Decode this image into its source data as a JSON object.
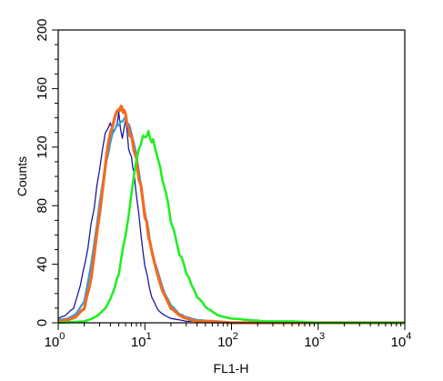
{
  "chart_data": {
    "type": "line",
    "xlabel": "FL1-H",
    "ylabel": "Counts",
    "x_scale": "log",
    "xlim": [
      1,
      10000
    ],
    "ylim": [
      0,
      200
    ],
    "x_ticks": [
      {
        "value": 1,
        "base": "10",
        "exp": "0"
      },
      {
        "value": 10,
        "base": "10",
        "exp": "1"
      },
      {
        "value": 100,
        "base": "10",
        "exp": "2"
      },
      {
        "value": 1000,
        "base": "10",
        "exp": "3"
      },
      {
        "value": 10000,
        "base": "10",
        "exp": "4"
      }
    ],
    "y_ticks": [
      "0",
      "40",
      "80",
      "120",
      "160",
      "200"
    ],
    "grid": false,
    "legend": "none",
    "series": [
      {
        "color": "#1a1aa0",
        "x": [
          1.0,
          1.2,
          1.5,
          1.8,
          2.2,
          2.6,
          3.0,
          3.5,
          4.0,
          4.5,
          5.0,
          5.5,
          6.0,
          6.5,
          7.0,
          7.5,
          8.0,
          9.0,
          10.0,
          12.0,
          14.0,
          17.0,
          20.0,
          25.0,
          30.0,
          40.0,
          60.0,
          100.0,
          10000.0
        ],
        "y": [
          3,
          5,
          10,
          25,
          52,
          80,
          105,
          128,
          136,
          130,
          142,
          128,
          137,
          118,
          114,
          100,
          88,
          60,
          38,
          18,
          9,
          5,
          3,
          2,
          1,
          1,
          0,
          0,
          0
        ]
      },
      {
        "color": "#3399dd",
        "x": [
          1.0,
          1.3,
          1.6,
          2.0,
          2.4,
          2.8,
          3.2,
          3.6,
          4.0,
          4.5,
          5.0,
          5.5,
          6.0,
          6.5,
          7.0,
          8.0,
          9.0,
          10.0,
          11.0,
          12.0,
          14.0,
          17.0,
          20.0,
          25.0,
          30.0,
          40.0,
          60.0,
          100.0,
          10000.0
        ],
        "y": [
          2,
          3,
          6,
          15,
          40,
          68,
          92,
          112,
          124,
          132,
          137,
          140,
          138,
          134,
          128,
          112,
          95,
          78,
          62,
          50,
          35,
          20,
          12,
          6,
          4,
          2,
          1,
          0,
          0
        ]
      },
      {
        "color": "#f26b21",
        "x": [
          1.0,
          1.3,
          1.6,
          2.0,
          2.4,
          2.8,
          3.2,
          3.6,
          4.0,
          4.5,
          5.0,
          5.3,
          5.6,
          6.0,
          6.5,
          7.0,
          8.0,
          9.0,
          10.0,
          11.0,
          12.0,
          14.0,
          17.0,
          20.0,
          25.0,
          30.0,
          40.0,
          60.0,
          100.0,
          10000.0
        ],
        "y": [
          1,
          2,
          4,
          10,
          30,
          62,
          90,
          114,
          128,
          140,
          146,
          148,
          145,
          140,
          134,
          126,
          110,
          92,
          74,
          60,
          48,
          32,
          18,
          10,
          5,
          3,
          1,
          1,
          0,
          0
        ]
      },
      {
        "color": "#22ee22",
        "x": [
          1.0,
          2.0,
          2.5,
          3.0,
          3.5,
          4.0,
          4.5,
          5.0,
          6.0,
          7.0,
          8.0,
          9.0,
          10.0,
          11.0,
          12.0,
          13.0,
          15.0,
          17.0,
          20.0,
          25.0,
          30.0,
          40.0,
          50.0,
          70.0,
          100.0,
          150.0,
          250.0,
          500.0,
          1000.0,
          10000.0
        ],
        "y": [
          0,
          1,
          3,
          6,
          10,
          16,
          24,
          34,
          60,
          90,
          112,
          122,
          128,
          130,
          126,
          120,
          105,
          90,
          70,
          48,
          34,
          18,
          11,
          5,
          3,
          2,
          1,
          1,
          0,
          0
        ]
      }
    ]
  }
}
